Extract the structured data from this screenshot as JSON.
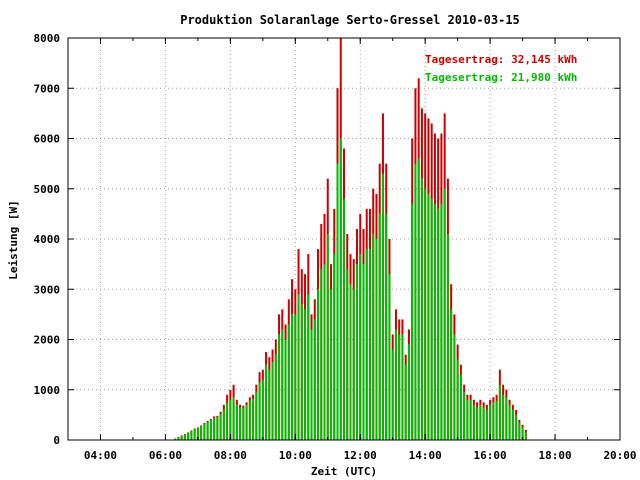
{
  "chart_data": {
    "type": "bar",
    "title": "Produktion Solaranlage Serto-Gressel 2010-03-15",
    "xlabel": "Zeit (UTC)",
    "ylabel": "Leistung [W]",
    "xlim": [
      3.0,
      20.0
    ],
    "ylim": [
      0,
      8000
    ],
    "x_ticks": [
      "04:00",
      "06:00",
      "08:00",
      "10:00",
      "12:00",
      "14:00",
      "16:00",
      "18:00",
      "20:00"
    ],
    "y_ticks": [
      "0",
      "1000",
      "2000",
      "3000",
      "4000",
      "5000",
      "6000",
      "7000",
      "8000"
    ],
    "grid": true,
    "legend_position": "top-right",
    "colors": {
      "series1": "#cc0000",
      "series2": "#00bb00"
    },
    "series": [
      {
        "name": "Tagesertrag: 32,145 kWh",
        "color": "#cc0000",
        "values": [
          [
            6.3,
            30
          ],
          [
            6.4,
            60
          ],
          [
            6.5,
            90
          ],
          [
            6.6,
            120
          ],
          [
            6.7,
            150
          ],
          [
            6.8,
            190
          ],
          [
            6.9,
            230
          ],
          [
            7.0,
            250
          ],
          [
            7.1,
            290
          ],
          [
            7.2,
            340
          ],
          [
            7.3,
            380
          ],
          [
            7.4,
            420
          ],
          [
            7.5,
            470
          ],
          [
            7.6,
            480
          ],
          [
            7.7,
            560
          ],
          [
            7.8,
            700
          ],
          [
            7.9,
            900
          ],
          [
            8.0,
            1000
          ],
          [
            8.1,
            1100
          ],
          [
            8.2,
            800
          ],
          [
            8.3,
            700
          ],
          [
            8.4,
            680
          ],
          [
            8.5,
            750
          ],
          [
            8.6,
            850
          ],
          [
            8.7,
            900
          ],
          [
            8.8,
            1100
          ],
          [
            8.9,
            1350
          ],
          [
            9.0,
            1400
          ],
          [
            9.1,
            1750
          ],
          [
            9.2,
            1650
          ],
          [
            9.3,
            1800
          ],
          [
            9.4,
            2000
          ],
          [
            9.5,
            2500
          ],
          [
            9.6,
            2600
          ],
          [
            9.7,
            2300
          ],
          [
            9.8,
            2800
          ],
          [
            9.9,
            3200
          ],
          [
            10.0,
            3000
          ],
          [
            10.1,
            3800
          ],
          [
            10.2,
            3400
          ],
          [
            10.3,
            3300
          ],
          [
            10.4,
            3700
          ],
          [
            10.5,
            2500
          ],
          [
            10.6,
            2800
          ],
          [
            10.7,
            3800
          ],
          [
            10.8,
            4300
          ],
          [
            10.9,
            4500
          ],
          [
            11.0,
            5200
          ],
          [
            11.1,
            3500
          ],
          [
            11.2,
            4600
          ],
          [
            11.3,
            7000
          ],
          [
            11.4,
            8000
          ],
          [
            11.5,
            5800
          ],
          [
            11.6,
            4100
          ],
          [
            11.7,
            3700
          ],
          [
            11.8,
            3600
          ],
          [
            11.9,
            4200
          ],
          [
            12.0,
            4500
          ],
          [
            12.1,
            4200
          ],
          [
            12.2,
            4600
          ],
          [
            12.3,
            4600
          ],
          [
            12.4,
            5000
          ],
          [
            12.5,
            4900
          ],
          [
            12.6,
            5500
          ],
          [
            12.7,
            6500
          ],
          [
            12.8,
            5500
          ],
          [
            12.9,
            4000
          ],
          [
            13.0,
            2100
          ],
          [
            13.1,
            2600
          ],
          [
            13.2,
            2400
          ],
          [
            13.3,
            2400
          ],
          [
            13.4,
            1700
          ],
          [
            13.5,
            2200
          ],
          [
            13.6,
            6000
          ],
          [
            13.7,
            7000
          ],
          [
            13.8,
            7200
          ],
          [
            13.9,
            6600
          ],
          [
            14.0,
            6500
          ],
          [
            14.1,
            6400
          ],
          [
            14.2,
            6300
          ],
          [
            14.3,
            6100
          ],
          [
            14.4,
            6000
          ],
          [
            14.5,
            6100
          ],
          [
            14.6,
            6500
          ],
          [
            14.7,
            5200
          ],
          [
            14.8,
            3100
          ],
          [
            14.9,
            2500
          ],
          [
            15.0,
            1900
          ],
          [
            15.1,
            1500
          ],
          [
            15.2,
            1100
          ],
          [
            15.3,
            900
          ],
          [
            15.4,
            900
          ],
          [
            15.5,
            800
          ],
          [
            15.6,
            750
          ],
          [
            15.7,
            800
          ],
          [
            15.8,
            750
          ],
          [
            15.9,
            700
          ],
          [
            16.0,
            800
          ],
          [
            16.1,
            850
          ],
          [
            16.2,
            900
          ],
          [
            16.3,
            1400
          ],
          [
            16.4,
            1100
          ],
          [
            16.5,
            1000
          ],
          [
            16.6,
            800
          ],
          [
            16.7,
            700
          ],
          [
            16.8,
            600
          ],
          [
            16.9,
            400
          ],
          [
            17.0,
            300
          ],
          [
            17.1,
            200
          ]
        ]
      },
      {
        "name": "Tagesertrag: 21,980 kWh",
        "color": "#00bb00",
        "values": [
          [
            6.3,
            30
          ],
          [
            6.4,
            50
          ],
          [
            6.5,
            80
          ],
          [
            6.6,
            110
          ],
          [
            6.7,
            140
          ],
          [
            6.8,
            180
          ],
          [
            6.9,
            220
          ],
          [
            7.0,
            240
          ],
          [
            7.1,
            280
          ],
          [
            7.2,
            320
          ],
          [
            7.3,
            360
          ],
          [
            7.4,
            400
          ],
          [
            7.5,
            440
          ],
          [
            7.6,
            460
          ],
          [
            7.7,
            520
          ],
          [
            7.8,
            600
          ],
          [
            7.9,
            750
          ],
          [
            8.0,
            800
          ],
          [
            8.1,
            850
          ],
          [
            8.2,
            700
          ],
          [
            8.3,
            650
          ],
          [
            8.4,
            640
          ],
          [
            8.5,
            700
          ],
          [
            8.6,
            780
          ],
          [
            8.7,
            820
          ],
          [
            8.8,
            950
          ],
          [
            8.9,
            1150
          ],
          [
            9.0,
            1200
          ],
          [
            9.1,
            1500
          ],
          [
            9.2,
            1400
          ],
          [
            9.3,
            1550
          ],
          [
            9.4,
            1700
          ],
          [
            9.5,
            2100
          ],
          [
            9.6,
            2200
          ],
          [
            9.7,
            2000
          ],
          [
            9.8,
            2300
          ],
          [
            9.9,
            2500
          ],
          [
            10.0,
            2500
          ],
          [
            10.1,
            2900
          ],
          [
            10.2,
            2700
          ],
          [
            10.3,
            2600
          ],
          [
            10.4,
            2900
          ],
          [
            10.5,
            2200
          ],
          [
            10.6,
            2400
          ],
          [
            10.7,
            3000
          ],
          [
            10.8,
            3400
          ],
          [
            10.9,
            3500
          ],
          [
            11.0,
            4100
          ],
          [
            11.1,
            3000
          ],
          [
            11.2,
            3700
          ],
          [
            11.3,
            5500
          ],
          [
            11.4,
            6000
          ],
          [
            11.5,
            4800
          ],
          [
            11.6,
            3400
          ],
          [
            11.7,
            3100
          ],
          [
            11.8,
            3000
          ],
          [
            11.9,
            3500
          ],
          [
            12.0,
            3700
          ],
          [
            12.1,
            3500
          ],
          [
            12.2,
            3800
          ],
          [
            12.3,
            3800
          ],
          [
            12.4,
            4100
          ],
          [
            12.5,
            4000
          ],
          [
            12.6,
            4500
          ],
          [
            12.7,
            5300
          ],
          [
            12.8,
            4500
          ],
          [
            12.9,
            3300
          ],
          [
            13.0,
            1800
          ],
          [
            13.1,
            2200
          ],
          [
            13.2,
            2100
          ],
          [
            13.3,
            2100
          ],
          [
            13.4,
            1500
          ],
          [
            13.5,
            1900
          ],
          [
            13.6,
            4700
          ],
          [
            13.7,
            5500
          ],
          [
            13.8,
            5600
          ],
          [
            13.9,
            5200
          ],
          [
            14.0,
            5000
          ],
          [
            14.1,
            4900
          ],
          [
            14.2,
            4800
          ],
          [
            14.3,
            4700
          ],
          [
            14.4,
            4600
          ],
          [
            14.5,
            4700
          ],
          [
            14.6,
            5000
          ],
          [
            14.7,
            4100
          ],
          [
            14.8,
            2600
          ],
          [
            14.9,
            2100
          ],
          [
            15.0,
            1600
          ],
          [
            15.1,
            1300
          ],
          [
            15.2,
            950
          ],
          [
            15.3,
            800
          ],
          [
            15.4,
            800
          ],
          [
            15.5,
            700
          ],
          [
            15.6,
            650
          ],
          [
            15.7,
            700
          ],
          [
            15.8,
            650
          ],
          [
            15.9,
            600
          ],
          [
            16.0,
            700
          ],
          [
            16.1,
            750
          ],
          [
            16.2,
            780
          ],
          [
            16.3,
            1100
          ],
          [
            16.4,
            900
          ],
          [
            16.5,
            850
          ],
          [
            16.6,
            700
          ],
          [
            16.7,
            600
          ],
          [
            16.8,
            500
          ],
          [
            16.9,
            350
          ],
          [
            17.0,
            250
          ],
          [
            17.1,
            150
          ]
        ]
      }
    ]
  }
}
